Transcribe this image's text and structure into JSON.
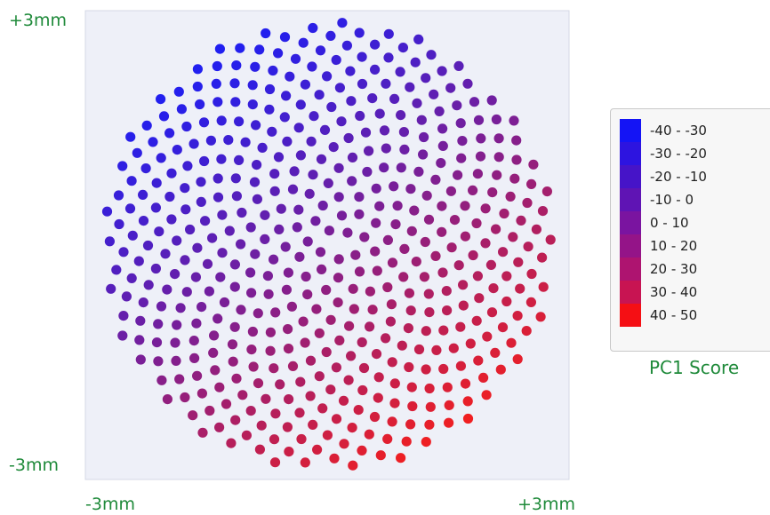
{
  "axis_labels": {
    "y_max": "+3mm",
    "y_min": "-3mm",
    "x_min": "-3mm",
    "x_max": "+3mm"
  },
  "chart_data": {
    "type": "scatter",
    "description_of_layout": "",
    "xlim": [
      -3,
      3
    ],
    "ylim": [
      -3,
      3
    ],
    "x_unit": "mm",
    "y_unit": "mm",
    "plot_background": "#eef0f8",
    "score_gradient": {
      "direction": "blue toward upper-left, red toward lower-right",
      "low_color": "#1f1ff2",
      "high_color": "#f21f1f"
    },
    "legend_title": "PC1 Score",
    "legend_entries": [
      {
        "label": "-40 - -30",
        "color": "#1414f5"
      },
      {
        "label": "-30 - -20",
        "color": "#2d14e0"
      },
      {
        "label": "-20 - -10",
        "color": "#4614c8"
      },
      {
        "label": "-10 - 0",
        "color": "#5f14b4"
      },
      {
        "label": "0 - 10",
        "color": "#7a14a0"
      },
      {
        "label": "10 - 20",
        "color": "#941488"
      },
      {
        "label": "20 - 30",
        "color": "#ae1470"
      },
      {
        "label": "30 - 40",
        "color": "#c81452"
      },
      {
        "label": "40 - 50",
        "color": "#f50f14"
      }
    ]
  }
}
